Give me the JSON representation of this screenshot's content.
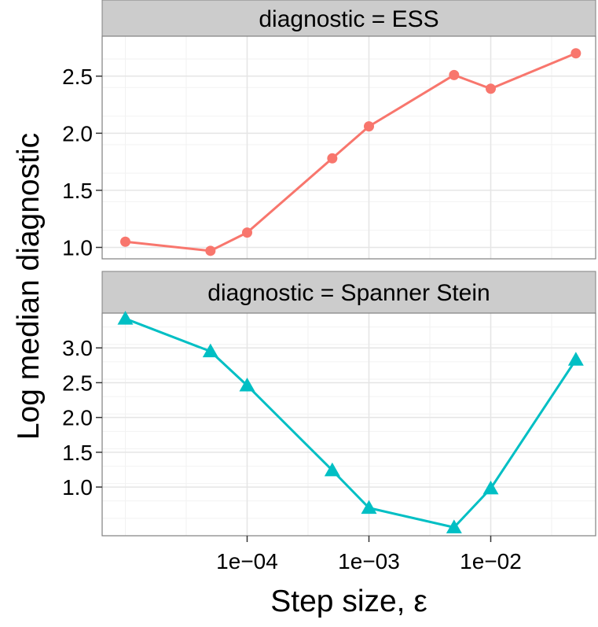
{
  "chart_data": {
    "type": "line",
    "facet_variable": "diagnostic",
    "ylabel": "Log median diagnostic",
    "xlabel": "Step size, ε",
    "x_scale": "log10",
    "x_values": [
      1e-05,
      5e-05,
      0.0001,
      0.0005,
      0.001,
      0.005,
      0.01,
      0.05
    ],
    "x_ticks": [
      "1e−04",
      "1e−03",
      "1e−02"
    ],
    "panels": [
      {
        "strip_label": "diagnostic = ESS",
        "color": "#F8766D",
        "marker": "circle",
        "values": [
          1.05,
          0.97,
          1.13,
          1.78,
          2.06,
          2.51,
          2.39,
          2.7
        ],
        "ylim": [
          0.9,
          2.85
        ],
        "y_ticks": [
          "1.0",
          "1.5",
          "2.0",
          "2.5"
        ]
      },
      {
        "strip_label": "diagnostic = Spanner Stein",
        "color": "#00BFC4",
        "marker": "triangle",
        "values": [
          3.42,
          2.95,
          2.46,
          1.24,
          0.7,
          0.42,
          0.98,
          2.83
        ],
        "ylim": [
          0.3,
          3.5
        ],
        "y_ticks": [
          "1.0",
          "1.5",
          "2.0",
          "2.5",
          "3.0"
        ]
      }
    ]
  }
}
